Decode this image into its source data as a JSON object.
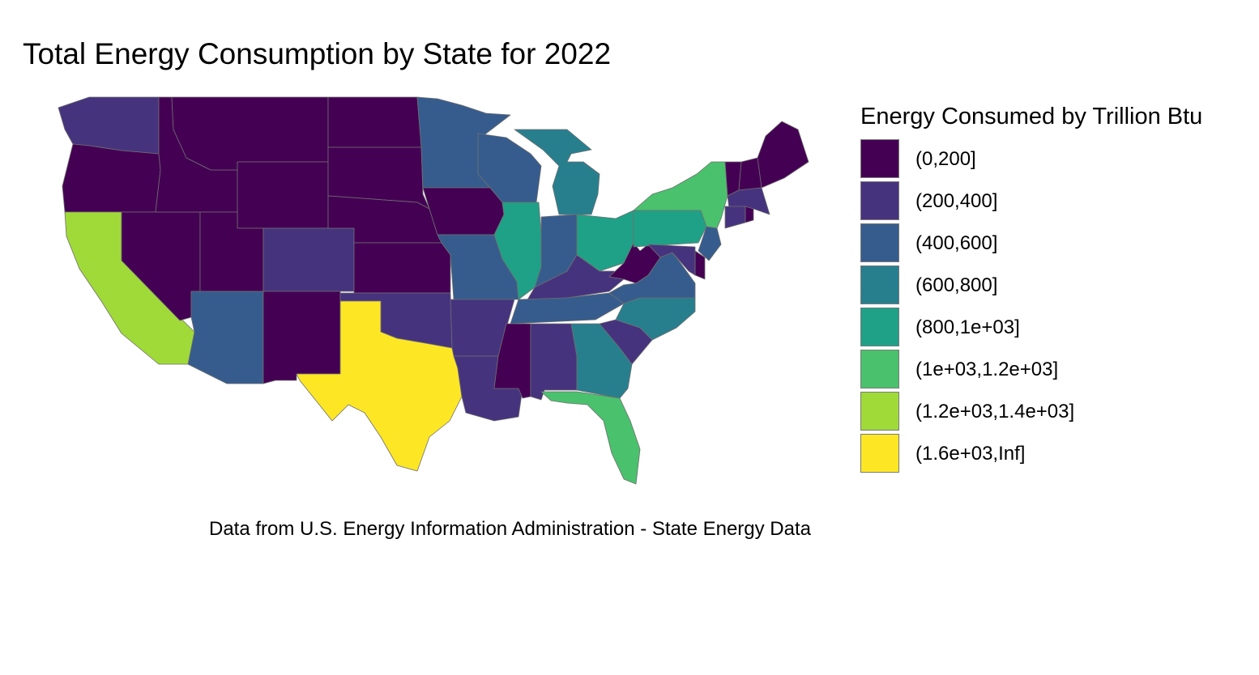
{
  "title": "Total Energy Consumption by State for 2022",
  "caption": "Data from U.S. Energy Information Administration - State Energy Data",
  "legend": {
    "title": "Energy Consumed by Trillion Btu",
    "items": [
      {
        "label": "(0,200]",
        "color": "#440154"
      },
      {
        "label": "(200,400]",
        "color": "#46337e"
      },
      {
        "label": "(400,600]",
        "color": "#365c8d"
      },
      {
        "label": "(600,800]",
        "color": "#277f8e"
      },
      {
        "label": "(800,1e+03]",
        "color": "#1fa187"
      },
      {
        "label": "(1e+03,1.2e+03]",
        "color": "#4ac16d"
      },
      {
        "label": "(1.2e+03,1.4e+03]",
        "color": "#a0da39"
      },
      {
        "label": "(1.6e+03,Inf]",
        "color": "#fde725"
      }
    ]
  },
  "states": {
    "WA": 1,
    "OR": 0,
    "CA": 6,
    "NV": 0,
    "ID": 0,
    "MT": 0,
    "WY": 0,
    "UT": 0,
    "AZ": 2,
    "CO": 1,
    "NM": 0,
    "ND": 0,
    "SD": 0,
    "NE": 0,
    "KS": 0,
    "OK": 1,
    "TX": 7,
    "MN": 2,
    "IA": 0,
    "MO": 2,
    "AR": 1,
    "LA": 1,
    "WI": 2,
    "IL": 4,
    "MI": 3,
    "IN": 2,
    "OH": 4,
    "KY": 1,
    "TN": 2,
    "MS": 0,
    "AL": 1,
    "GA": 3,
    "FL": 5,
    "SC": 1,
    "NC": 3,
    "VA": 2,
    "WV": 0,
    "PA": 4,
    "NY": 5,
    "ME": 0,
    "VT": 0,
    "NH": 0,
    "MA": 1,
    "CT": 1,
    "RI": 0,
    "NJ": 2,
    "DE": 0,
    "MD": 1
  }
}
